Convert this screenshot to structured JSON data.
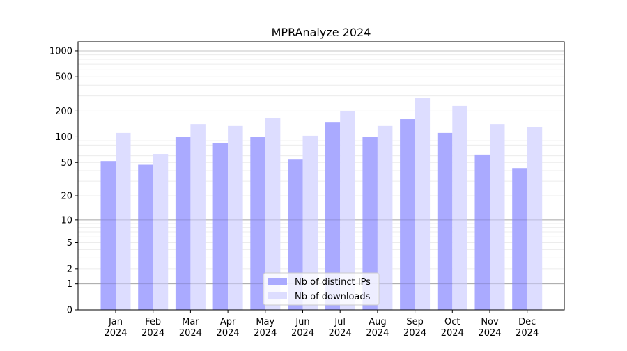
{
  "chart_data": {
    "type": "bar",
    "title": "MPRAnalyze 2024",
    "xlabel": "",
    "ylabel": "",
    "y_scale": "symlog",
    "ylim": [
      0,
      1320
    ],
    "yticks": [
      0,
      1,
      2,
      5,
      10,
      20,
      50,
      100,
      200,
      500,
      1000
    ],
    "ytick_labels": [
      "0",
      "1",
      "2",
      "5",
      "10",
      "20",
      "50",
      "100",
      "200",
      "500",
      "1000"
    ],
    "grid": true,
    "legend_position": "bottom-center",
    "categories": [
      "Jan\n2024",
      "Feb\n2024",
      "Mar\n2024",
      "Apr\n2024",
      "May\n2024",
      "Jun\n2024",
      "Jul\n2024",
      "Aug\n2024",
      "Sep\n2024",
      "Oct\n2024",
      "Nov\n2024",
      "Dec\n2024"
    ],
    "series": [
      {
        "name": "Nb of distinct IPs",
        "color": "#aaaaff",
        "values": [
          52,
          47,
          99,
          84,
          100,
          54,
          149,
          99,
          161,
          111,
          62,
          43
        ]
      },
      {
        "name": "Nb of downloads",
        "color": "#ddddff",
        "values": [
          111,
          63,
          141,
          134,
          167,
          103,
          198,
          134,
          287,
          230,
          141,
          129
        ]
      }
    ]
  }
}
